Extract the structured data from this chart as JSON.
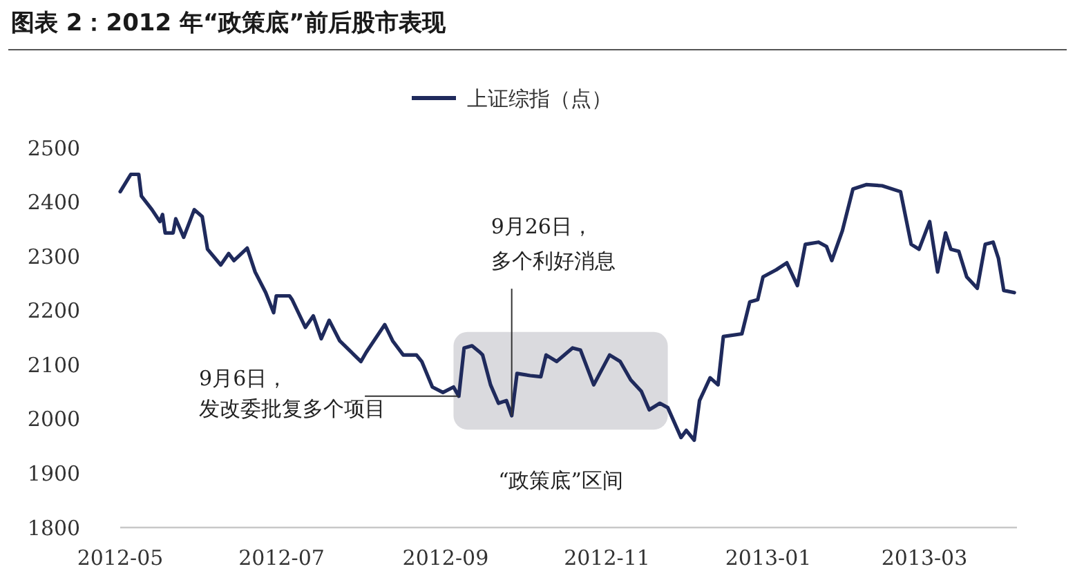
{
  "chart_data": {
    "type": "line",
    "title": "图表 2：2012 年“政策底”前后股市表现",
    "x": [
      "2012-05-01",
      "2012-05-05",
      "2012-05-08",
      "2012-05-09",
      "2012-05-13",
      "2012-05-16",
      "2012-05-17",
      "2012-05-18",
      "2012-05-21",
      "2012-05-22",
      "2012-05-25",
      "2012-05-29",
      "2012-06-01",
      "2012-06-03",
      "2012-06-08",
      "2012-06-11",
      "2012-06-13",
      "2012-06-18",
      "2012-06-21",
      "2012-06-25",
      "2012-06-28",
      "2012-06-29",
      "2012-07-04",
      "2012-07-05",
      "2012-07-10",
      "2012-07-13",
      "2012-07-16",
      "2012-07-19",
      "2012-07-23",
      "2012-07-31",
      "2012-08-02",
      "2012-08-09",
      "2012-08-12",
      "2012-08-16",
      "2012-08-21",
      "2012-08-23",
      "2012-08-27",
      "2012-08-31",
      "2012-09-04",
      "2012-09-06",
      "2012-09-08",
      "2012-09-11",
      "2012-09-14",
      "2012-09-15",
      "2012-09-18",
      "2012-09-21",
      "2012-09-24",
      "2012-09-26",
      "2012-09-28",
      "2012-10-03",
      "2012-10-07",
      "2012-10-09",
      "2012-10-13",
      "2012-10-19",
      "2012-10-22",
      "2012-10-27",
      "2012-11-02",
      "2012-11-06",
      "2012-11-10",
      "2012-11-14",
      "2012-11-17",
      "2012-11-21",
      "2012-11-24",
      "2012-11-29",
      "2012-12-01",
      "2012-12-04",
      "2012-12-06",
      "2012-12-10",
      "2012-12-13",
      "2012-12-15",
      "2012-12-22",
      "2012-12-25",
      "2012-12-28",
      "2012-12-30",
      "2013-01-04",
      "2013-01-08",
      "2013-01-12",
      "2013-01-15",
      "2013-01-20",
      "2013-01-23",
      "2013-01-25",
      "2013-01-29",
      "2013-02-02",
      "2013-02-07",
      "2013-02-13",
      "2013-02-20",
      "2013-02-24",
      "2013-02-27",
      "2013-03-03",
      "2013-03-06",
      "2013-03-09",
      "2013-03-11",
      "2013-03-14",
      "2013-03-17",
      "2013-03-21",
      "2013-03-24",
      "2013-03-27",
      "2013-03-29",
      "2013-03-31",
      "2013-04-04"
    ],
    "series": [
      {
        "name": "上证综指（点）",
        "color": "#1f2a5c",
        "values": [
          2419,
          2451,
          2451,
          2411,
          2386,
          2364,
          2377,
          2343,
          2343,
          2369,
          2335,
          2386,
          2373,
          2313,
          2284,
          2305,
          2292,
          2315,
          2271,
          2233,
          2196,
          2227,
          2227,
          2220,
          2169,
          2190,
          2148,
          2182,
          2144,
          2106,
          2123,
          2174,
          2144,
          2118,
          2118,
          2106,
          2059,
          2049,
          2059,
          2042,
          2131,
          2135,
          2123,
          2118,
          2063,
          2029,
          2034,
          2006,
          2084,
          2080,
          2078,
          2118,
          2106,
          2131,
          2127,
          2063,
          2118,
          2106,
          2072,
          2051,
          2017,
          2029,
          2021,
          1966,
          1979,
          1961,
          2034,
          2076,
          2063,
          2152,
          2157,
          2216,
          2220,
          2262,
          2275,
          2288,
          2246,
          2322,
          2326,
          2318,
          2292,
          2347,
          2424,
          2432,
          2430,
          2419,
          2322,
          2313,
          2364,
          2271,
          2343,
          2313,
          2309,
          2262,
          2241,
          2322,
          2326,
          2296,
          2237,
          2233
        ]
      }
    ],
    "xlim": [
      "2012-05-01",
      "2013-04-05"
    ],
    "xticks": [
      {
        "value": "2012-05-01",
        "label": "2012-05"
      },
      {
        "value": "2012-07-01",
        "label": "2012-07"
      },
      {
        "value": "2012-09-01",
        "label": "2012-09"
      },
      {
        "value": "2012-11-01",
        "label": "2012-11"
      },
      {
        "value": "2013-01-01",
        "label": "2013-01"
      },
      {
        "value": "2013-03-01",
        "label": "2013-03"
      }
    ],
    "ylim": [
      1800,
      2500
    ],
    "yticks": [
      1800,
      1900,
      2000,
      2100,
      2200,
      2300,
      2400,
      2500
    ],
    "grid": false,
    "legend": "top",
    "line_style": "solid",
    "marker": "none",
    "bands": [
      {
        "axis": "x",
        "from": "2012-09-04",
        "to": "2012-11-24",
        "label": "“政策底”区间",
        "color": "#d4d4d8"
      }
    ],
    "annotations": [
      {
        "text": "9月6日，发改委批复多个项目",
        "x": "2012-09-06",
        "y": 2042
      },
      {
        "text": "9月26日，多个利好消息",
        "x": "2012-09-26",
        "y": 2006
      }
    ]
  }
}
